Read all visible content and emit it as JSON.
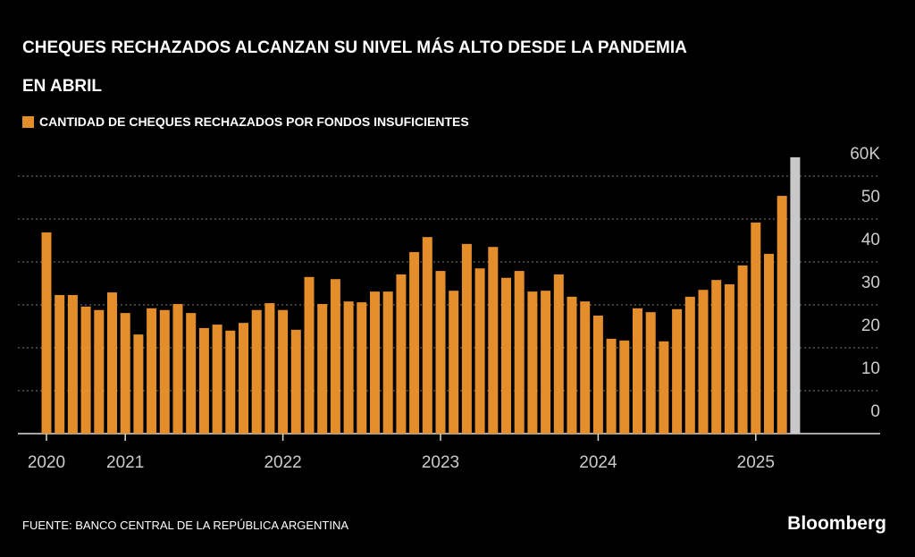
{
  "chart_data": {
    "type": "bar",
    "title": "CHEQUES RECHAZADOS ALCANZAN SU NIVEL MÁS ALTO DESDE LA PANDEMIA EN ABRIL",
    "legend_label": "CANTIDAD DE CHEQUES RECHAZADOS POR FONDOS INSUFICIENTES",
    "source": "FUENTE: BANCO CENTRAL DE LA REPÚBLICA ARGENTINA",
    "brand": "Bloomberg",
    "color": "#e48d2b",
    "categories": [
      "2020",
      null,
      null,
      null,
      null,
      null,
      "2021",
      null,
      null,
      null,
      null,
      null,
      null,
      null,
      null,
      null,
      null,
      null,
      "2022",
      null,
      null,
      null,
      null,
      null,
      null,
      null,
      null,
      null,
      null,
      null,
      "2023",
      null,
      null,
      null,
      null,
      null,
      null,
      null,
      null,
      null,
      null,
      null,
      "2024",
      null,
      null,
      null,
      null,
      null,
      null,
      null,
      null,
      null,
      null,
      null,
      "2025",
      null,
      null,
      null
    ],
    "values": [
      46.9,
      32.3,
      32.3,
      29.6,
      28.8,
      32.9,
      28.1,
      23.1,
      29.2,
      28.8,
      30.2,
      28.1,
      24.6,
      25.4,
      24.0,
      25.8,
      28.8,
      30.4,
      28.8,
      24.2,
      36.5,
      30.2,
      36.0,
      30.8,
      30.6,
      33.1,
      33.1,
      37.1,
      42.3,
      45.8,
      37.9,
      33.3,
      44.2,
      38.5,
      43.5,
      36.3,
      37.9,
      33.1,
      33.3,
      37.1,
      31.9,
      30.8,
      27.5,
      22.1,
      21.7,
      29.2,
      28.3,
      21.5,
      29.0,
      31.9,
      33.5,
      35.8,
      34.8,
      39.2,
      49.2,
      41.9,
      55.4,
      64.4
    ],
    "colors": [
      "#e48d2b",
      "#e48d2b",
      "#e48d2b",
      "#e48d2b",
      "#e48d2b",
      "#e48d2b",
      "#e48d2b",
      "#e48d2b",
      "#e48d2b",
      "#e48d2b",
      "#e48d2b",
      "#e48d2b",
      "#e48d2b",
      "#e48d2b",
      "#e48d2b",
      "#e48d2b",
      "#e48d2b",
      "#e48d2b",
      "#e48d2b",
      "#e48d2b",
      "#e48d2b",
      "#e48d2b",
      "#e48d2b",
      "#e48d2b",
      "#e48d2b",
      "#e48d2b",
      "#e48d2b",
      "#e48d2b",
      "#e48d2b",
      "#e48d2b",
      "#e48d2b",
      "#e48d2b",
      "#e48d2b",
      "#e48d2b",
      "#e48d2b",
      "#e48d2b",
      "#e48d2b",
      "#e48d2b",
      "#e48d2b",
      "#e48d2b",
      "#e48d2b",
      "#e48d2b",
      "#e48d2b",
      "#e48d2b",
      "#e48d2b",
      "#e48d2b",
      "#e48d2b",
      "#e48d2b",
      "#e48d2b",
      "#e48d2b",
      "#e48d2b",
      "#e48d2b",
      "#e48d2b",
      "#e48d2b",
      "#e48d2b",
      "#e48d2b",
      "#e48d2b",
      "#c8c8c8"
    ],
    "ylim": [
      0,
      65
    ],
    "yticks": [
      0,
      10,
      20,
      30,
      40,
      50,
      {
        "value": 60,
        "label": "60K"
      }
    ],
    "grid": true
  }
}
